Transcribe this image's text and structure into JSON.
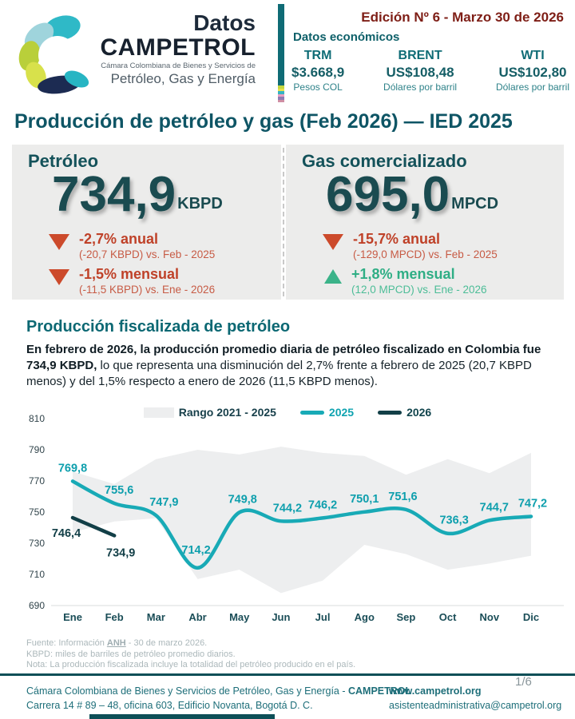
{
  "colors": {
    "primary_teal": "#0f6b75",
    "dark_teal": "#1a4b50",
    "title_teal": "#0e5565",
    "edition_red": "#7e1e16",
    "kpi_bg": "#ececeb",
    "neg_red": "#bf4128",
    "pos_green": "#2fae85",
    "line_2025": "#18aab6",
    "line_2026": "#123f47",
    "band_gray": "#edeeef",
    "stripes": [
      "#c3d63d",
      "#e8e04a",
      "#35b4c4",
      "#e99fc2",
      "#8e7bb5",
      "#cf8fa4"
    ]
  },
  "header": {
    "logo": {
      "datos": "Datos",
      "brand": "CAMPETROL",
      "subtitle1": "Cámara Colombiana de Bienes y Servicios de",
      "subtitle2": "Petróleo, Gas y Energía"
    },
    "edition": "Edición Nº 6 - Marzo 30 de 2026",
    "econ_title": "Datos económicos",
    "indicators": [
      {
        "label": "TRM",
        "value": "$3.668,9",
        "unit": "Pesos COL"
      },
      {
        "label": "BRENT",
        "value": "US$108,48",
        "unit": "Dólares por barril"
      },
      {
        "label": "WTI",
        "value": "US$102,80",
        "unit": "Dólares por barril"
      }
    ]
  },
  "title": "Producción de petróleo y gas (Feb 2026) — IED 2025",
  "kpis": {
    "oil": {
      "title": "Petróleo",
      "value": "734,9",
      "unit": "KBPD",
      "changes": [
        {
          "dir": "down",
          "main": "-2,7% anual",
          "detail": "(-20,7 KBPD) vs. Feb - 2025"
        },
        {
          "dir": "down",
          "main": "-1,5% mensual",
          "detail": "(-11,5 KBPD) vs. Ene - 2026"
        }
      ]
    },
    "gas": {
      "title": "Gas comercializado",
      "value": "695,0",
      "unit": "MPCD",
      "changes": [
        {
          "dir": "down",
          "main": "-15,7% anual",
          "detail": "(-129,0 MPCD) vs. Feb - 2025"
        },
        {
          "dir": "up",
          "main": "+1,8% mensual",
          "detail": "(12,0 MPCD) vs. Ene - 2026"
        }
      ]
    }
  },
  "section": {
    "heading": "Producción fiscalizada de petróleo",
    "para_bold": "En febrero de 2026, la producción promedio diaria de petróleo fiscalizado en Colombia fue 734,9 KBPD,",
    "para_rest": " lo que representa una disminución del 2,7% frente a febrero de 2025 (20,7 KBPD menos) y del 1,5% respecto a enero de 2026 (11,5 KBPD menos)."
  },
  "chart_data": {
    "type": "line",
    "x": [
      "Ene",
      "Feb",
      "Mar",
      "Abr",
      "May",
      "Jun",
      "Jul",
      "Ago",
      "Sep",
      "Oct",
      "Nov",
      "Dic"
    ],
    "ylim": [
      690,
      810
    ],
    "y_ticks": [
      810,
      790,
      770,
      750,
      730,
      710,
      690
    ],
    "grid": "baseline-only",
    "legend_position": "top-center",
    "legend": [
      {
        "label": "Rango 2021 - 2025",
        "type": "band",
        "color": "#edeeef"
      },
      {
        "label": "2025",
        "type": "line",
        "color": "#18aab6"
      },
      {
        "label": "2026",
        "type": "line",
        "color": "#123f47"
      }
    ],
    "series": [
      {
        "name": "2025",
        "color": "#18aab6",
        "label_color": "#0e9fad",
        "values": [
          769.8,
          755.6,
          747.9,
          714.2,
          749.8,
          744.2,
          746.2,
          750.1,
          751.6,
          736.3,
          744.7,
          747.2
        ],
        "labels": [
          "769,8",
          "755,6",
          "747,9",
          "714,2",
          "749,8",
          "744,2",
          "746,2",
          "750,1",
          "751,6",
          "736,3",
          "744,7",
          "747,2"
        ]
      },
      {
        "name": "2026",
        "color": "#123f47",
        "label_color": "#123f47",
        "values": [
          746.4,
          734.9
        ],
        "labels": [
          "746,4",
          "734,9"
        ]
      }
    ],
    "band": {
      "name": "Rango 2021 - 2025",
      "color": "#edeeef",
      "top": [
        776,
        768,
        784,
        790,
        787,
        792,
        788,
        786,
        774,
        784,
        775,
        788
      ],
      "bottom": [
        737,
        744,
        746,
        707,
        713,
        698,
        706,
        729,
        723,
        713,
        717,
        722
      ]
    }
  },
  "notes": {
    "fuente_pre": "Fuente: Información ",
    "fuente_link": "ANH",
    "fuente_post": " - 30 de marzo 2026.",
    "line2": "KBPD: miles de barriles de petróleo promedio diarios.",
    "line3": "Nota: La producción fiscalizada incluye la totalidad del petróleo producido en el país."
  },
  "footer": {
    "org_pre": "Cámara Colombiana de Bienes y Servicios de Petróleo, Gas y Energía - ",
    "org_bold": "CAMPETROL",
    "address": "Carrera 14 # 89 – 48, oficina 603, Edificio Novanta, Bogotá D. C.",
    "web": "www.campetrol.org",
    "email": "asistenteadministrativa@campetrol.org",
    "page": "1/6"
  }
}
